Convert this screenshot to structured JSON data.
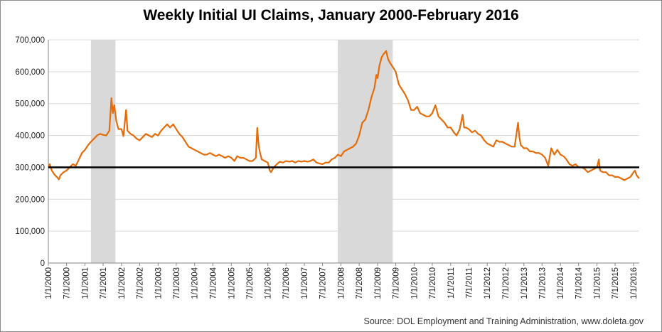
{
  "chart_data": {
    "type": "line",
    "title": "Weekly Initial UI Claims, January 2000-February 2016",
    "source": "Source: DOL Employment and Training Administration, www.doleta.gov",
    "xlabel": "",
    "ylabel": "",
    "ylim": [
      0,
      700000
    ],
    "y_ticks": [
      "0",
      "100,000",
      "200,000",
      "300,000",
      "400,000",
      "500,000",
      "600,000",
      "700,000"
    ],
    "x_ticks": [
      "1/1/2000",
      "7/1/2000",
      "1/1/2001",
      "7/1/2001",
      "1/1/2002",
      "7/1/2002",
      "1/1/2003",
      "7/1/2003",
      "1/1/2004",
      "7/1/2004",
      "1/1/2005",
      "7/1/2005",
      "1/1/2006",
      "7/1/2006",
      "1/1/2007",
      "7/1/2007",
      "1/1/2008",
      "7/1/2008",
      "1/1/2009",
      "7/1/2009",
      "1/1/2010",
      "7/1/2010",
      "1/1/2011",
      "7/1/2011",
      "1/1/2012",
      "7/1/2012",
      "1/1/2013",
      "7/1/2013",
      "1/1/2014",
      "7/1/2014",
      "1/1/2015",
      "7/1/2015",
      "1/1/2016"
    ],
    "xlim": [
      "2000-01-01",
      "2016-02-27"
    ],
    "recession_shading": [
      {
        "start": "2001-03-01",
        "end": "2001-11-01"
      },
      {
        "start": "2007-12-01",
        "end": "2009-06-01"
      }
    ],
    "reference_line": {
      "y": 300000,
      "color": "#000000"
    },
    "grid": "horizontal",
    "series": [
      {
        "color": "#e46c0a",
        "points": [
          [
            "2000-01-01",
            300000
          ],
          [
            "2000-01-15",
            310000
          ],
          [
            "2000-02-05",
            290000
          ],
          [
            "2000-03-01",
            278000
          ],
          [
            "2000-04-01",
            268000
          ],
          [
            "2000-04-15",
            262000
          ],
          [
            "2000-05-01",
            275000
          ],
          [
            "2000-06-01",
            285000
          ],
          [
            "2000-07-01",
            290000
          ],
          [
            "2000-08-01",
            300000
          ],
          [
            "2000-09-01",
            310000
          ],
          [
            "2000-10-01",
            305000
          ],
          [
            "2000-11-01",
            325000
          ],
          [
            "2000-12-01",
            345000
          ],
          [
            "2001-01-01",
            355000
          ],
          [
            "2001-02-01",
            370000
          ],
          [
            "2001-03-01",
            380000
          ],
          [
            "2001-04-01",
            390000
          ],
          [
            "2001-05-01",
            400000
          ],
          [
            "2001-06-01",
            405000
          ],
          [
            "2001-07-01",
            402000
          ],
          [
            "2001-08-01",
            400000
          ],
          [
            "2001-09-01",
            415000
          ],
          [
            "2001-09-22",
            517000
          ],
          [
            "2001-10-06",
            470000
          ],
          [
            "2001-10-20",
            495000
          ],
          [
            "2001-11-10",
            445000
          ],
          [
            "2001-12-01",
            420000
          ],
          [
            "2002-01-01",
            420000
          ],
          [
            "2002-01-20",
            398000
          ],
          [
            "2002-02-15",
            480000
          ],
          [
            "2002-03-01",
            415000
          ],
          [
            "2002-04-01",
            405000
          ],
          [
            "2002-05-01",
            400000
          ],
          [
            "2002-06-01",
            390000
          ],
          [
            "2002-07-01",
            385000
          ],
          [
            "2002-08-01",
            395000
          ],
          [
            "2002-09-01",
            405000
          ],
          [
            "2002-10-01",
            400000
          ],
          [
            "2002-11-01",
            395000
          ],
          [
            "2002-12-01",
            405000
          ],
          [
            "2003-01-01",
            400000
          ],
          [
            "2003-02-01",
            415000
          ],
          [
            "2003-03-01",
            425000
          ],
          [
            "2003-04-01",
            435000
          ],
          [
            "2003-05-01",
            425000
          ],
          [
            "2003-06-01",
            435000
          ],
          [
            "2003-07-01",
            420000
          ],
          [
            "2003-08-01",
            405000
          ],
          [
            "2003-09-01",
            395000
          ],
          [
            "2003-10-01",
            380000
          ],
          [
            "2003-11-01",
            365000
          ],
          [
            "2003-12-01",
            360000
          ],
          [
            "2004-01-01",
            355000
          ],
          [
            "2004-02-01",
            350000
          ],
          [
            "2004-03-01",
            345000
          ],
          [
            "2004-04-01",
            340000
          ],
          [
            "2004-05-01",
            340000
          ],
          [
            "2004-06-01",
            345000
          ],
          [
            "2004-07-01",
            340000
          ],
          [
            "2004-08-01",
            335000
          ],
          [
            "2004-09-01",
            340000
          ],
          [
            "2004-10-01",
            335000
          ],
          [
            "2004-11-01",
            330000
          ],
          [
            "2004-12-01",
            335000
          ],
          [
            "2005-01-01",
            330000
          ],
          [
            "2005-02-01",
            320000
          ],
          [
            "2005-03-01",
            335000
          ],
          [
            "2005-04-01",
            330000
          ],
          [
            "2005-05-01",
            330000
          ],
          [
            "2005-06-01",
            325000
          ],
          [
            "2005-07-01",
            320000
          ],
          [
            "2005-08-01",
            320000
          ],
          [
            "2005-09-03",
            330000
          ],
          [
            "2005-09-17",
            424000
          ],
          [
            "2005-10-01",
            370000
          ],
          [
            "2005-10-15",
            345000
          ],
          [
            "2005-11-01",
            325000
          ],
          [
            "2005-12-01",
            320000
          ],
          [
            "2006-01-01",
            315000
          ],
          [
            "2006-01-20",
            290000
          ],
          [
            "2006-02-01",
            285000
          ],
          [
            "2006-03-01",
            300000
          ],
          [
            "2006-04-01",
            310000
          ],
          [
            "2006-05-01",
            318000
          ],
          [
            "2006-06-01",
            315000
          ],
          [
            "2006-07-01",
            320000
          ],
          [
            "2006-08-01",
            318000
          ],
          [
            "2006-09-01",
            320000
          ],
          [
            "2006-10-01",
            315000
          ],
          [
            "2006-11-01",
            320000
          ],
          [
            "2006-12-01",
            318000
          ],
          [
            "2007-01-01",
            320000
          ],
          [
            "2007-02-01",
            318000
          ],
          [
            "2007-03-01",
            320000
          ],
          [
            "2007-04-01",
            325000
          ],
          [
            "2007-05-01",
            315000
          ],
          [
            "2007-06-01",
            312000
          ],
          [
            "2007-07-01",
            310000
          ],
          [
            "2007-08-01",
            315000
          ],
          [
            "2007-09-01",
            315000
          ],
          [
            "2007-10-01",
            325000
          ],
          [
            "2007-11-01",
            330000
          ],
          [
            "2007-12-01",
            340000
          ],
          [
            "2008-01-01",
            335000
          ],
          [
            "2008-02-01",
            350000
          ],
          [
            "2008-03-01",
            355000
          ],
          [
            "2008-04-01",
            360000
          ],
          [
            "2008-05-01",
            365000
          ],
          [
            "2008-06-01",
            375000
          ],
          [
            "2008-07-01",
            400000
          ],
          [
            "2008-08-01",
            440000
          ],
          [
            "2008-09-01",
            450000
          ],
          [
            "2008-10-01",
            480000
          ],
          [
            "2008-11-01",
            520000
          ],
          [
            "2008-12-01",
            550000
          ],
          [
            "2008-12-20",
            590000
          ],
          [
            "2009-01-01",
            580000
          ],
          [
            "2009-01-20",
            620000
          ],
          [
            "2009-02-10",
            645000
          ],
          [
            "2009-03-01",
            655000
          ],
          [
            "2009-03-28",
            665000
          ],
          [
            "2009-04-15",
            640000
          ],
          [
            "2009-05-01",
            630000
          ],
          [
            "2009-06-01",
            615000
          ],
          [
            "2009-07-01",
            600000
          ],
          [
            "2009-08-01",
            560000
          ],
          [
            "2009-09-01",
            545000
          ],
          [
            "2009-10-01",
            530000
          ],
          [
            "2009-11-01",
            510000
          ],
          [
            "2009-12-01",
            480000
          ],
          [
            "2010-01-01",
            480000
          ],
          [
            "2010-02-01",
            490000
          ],
          [
            "2010-03-01",
            470000
          ],
          [
            "2010-04-01",
            465000
          ],
          [
            "2010-05-01",
            460000
          ],
          [
            "2010-06-01",
            460000
          ],
          [
            "2010-07-01",
            470000
          ],
          [
            "2010-08-01",
            495000
          ],
          [
            "2010-09-01",
            460000
          ],
          [
            "2010-10-01",
            450000
          ],
          [
            "2010-11-01",
            440000
          ],
          [
            "2010-12-01",
            425000
          ],
          [
            "2011-01-01",
            425000
          ],
          [
            "2011-02-01",
            410000
          ],
          [
            "2011-03-01",
            400000
          ],
          [
            "2011-04-01",
            420000
          ],
          [
            "2011-04-30",
            465000
          ],
          [
            "2011-05-15",
            425000
          ],
          [
            "2011-06-01",
            425000
          ],
          [
            "2011-07-01",
            420000
          ],
          [
            "2011-08-01",
            410000
          ],
          [
            "2011-09-01",
            415000
          ],
          [
            "2011-10-01",
            405000
          ],
          [
            "2011-11-01",
            400000
          ],
          [
            "2011-12-01",
            385000
          ],
          [
            "2012-01-01",
            375000
          ],
          [
            "2012-02-01",
            370000
          ],
          [
            "2012-03-01",
            365000
          ],
          [
            "2012-04-01",
            385000
          ],
          [
            "2012-05-01",
            380000
          ],
          [
            "2012-06-01",
            380000
          ],
          [
            "2012-07-01",
            375000
          ],
          [
            "2012-08-01",
            370000
          ],
          [
            "2012-09-01",
            365000
          ],
          [
            "2012-10-01",
            365000
          ],
          [
            "2012-11-03",
            440000
          ],
          [
            "2012-11-17",
            395000
          ],
          [
            "2012-12-01",
            370000
          ],
          [
            "2013-01-01",
            360000
          ],
          [
            "2013-02-01",
            360000
          ],
          [
            "2013-03-01",
            350000
          ],
          [
            "2013-04-01",
            350000
          ],
          [
            "2013-05-01",
            345000
          ],
          [
            "2013-06-01",
            345000
          ],
          [
            "2013-07-01",
            340000
          ],
          [
            "2013-08-01",
            330000
          ],
          [
            "2013-09-01",
            305000
          ],
          [
            "2013-10-01",
            360000
          ],
          [
            "2013-11-01",
            340000
          ],
          [
            "2013-12-01",
            355000
          ],
          [
            "2014-01-01",
            340000
          ],
          [
            "2014-02-01",
            335000
          ],
          [
            "2014-03-01",
            325000
          ],
          [
            "2014-04-01",
            310000
          ],
          [
            "2014-05-01",
            305000
          ],
          [
            "2014-06-01",
            310000
          ],
          [
            "2014-07-01",
            300000
          ],
          [
            "2014-08-01",
            300000
          ],
          [
            "2014-09-01",
            295000
          ],
          [
            "2014-10-01",
            285000
          ],
          [
            "2014-11-01",
            290000
          ],
          [
            "2014-12-01",
            295000
          ],
          [
            "2015-01-01",
            300000
          ],
          [
            "2015-01-20",
            325000
          ],
          [
            "2015-02-01",
            290000
          ],
          [
            "2015-03-01",
            285000
          ],
          [
            "2015-04-01",
            285000
          ],
          [
            "2015-05-01",
            275000
          ],
          [
            "2015-06-01",
            275000
          ],
          [
            "2015-07-01",
            270000
          ],
          [
            "2015-08-01",
            270000
          ],
          [
            "2015-09-01",
            265000
          ],
          [
            "2015-10-01",
            260000
          ],
          [
            "2015-11-01",
            265000
          ],
          [
            "2015-12-01",
            270000
          ],
          [
            "2016-01-01",
            285000
          ],
          [
            "2016-01-15",
            290000
          ],
          [
            "2016-02-01",
            275000
          ],
          [
            "2016-02-27",
            265000
          ]
        ]
      }
    ]
  }
}
